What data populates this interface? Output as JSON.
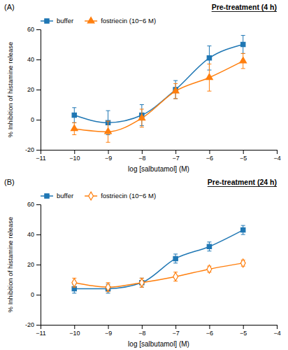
{
  "chart_data": [
    {
      "type": "line",
      "title": "Pre-treatment (4 h)",
      "annotations": [
        "(A)"
      ],
      "xlabel": "log [salbutamol] (M)",
      "ylabel": "% Inhibition of histamine release",
      "line_style": "solid",
      "legend": "top",
      "grid": false,
      "xlim": [
        -11,
        -4
      ],
      "ylim": [
        -20,
        60
      ],
      "xticks": [
        {
          "value": -11,
          "label": "−11"
        },
        {
          "value": -10,
          "label": "−10"
        },
        {
          "value": -9,
          "label": "−9"
        },
        {
          "value": -8,
          "label": "−8"
        },
        {
          "value": -7,
          "label": "−7"
        },
        {
          "value": -6,
          "label": "−6"
        },
        {
          "value": -5,
          "label": "−5"
        },
        {
          "value": -4,
          "label": "−4"
        }
      ],
      "yticks": [
        -20,
        0,
        20,
        40,
        60
      ],
      "series": [
        {
          "name": "buffer",
          "marker": "square",
          "x": [
            -10,
            -9,
            -8,
            -7,
            -6,
            -5
          ],
          "values": [
            3,
            -2,
            3,
            20,
            41,
            50
          ],
          "errors": [
            5,
            8,
            7,
            6,
            8,
            6
          ]
        },
        {
          "name": "fostriecin (10−6 M)",
          "marker": "triangle",
          "x": [
            -10,
            -9,
            -8,
            -7,
            -6,
            -5
          ],
          "values": [
            -6,
            -8,
            1,
            19,
            28,
            39
          ],
          "errors": [
            4,
            7,
            6,
            5,
            9,
            5
          ]
        }
      ]
    },
    {
      "type": "line",
      "title": "Pre-treatment (24 h)",
      "annotations": [
        "(B)"
      ],
      "xlabel": "log [salbutamol] (M)",
      "ylabel": "% Inhibition of histamine release",
      "line_style": "solid",
      "legend": "top",
      "grid": false,
      "xlim": [
        -11,
        -4
      ],
      "ylim": [
        -20,
        60
      ],
      "xticks": [
        {
          "value": -11,
          "label": "−11"
        },
        {
          "value": -10,
          "label": "−10"
        },
        {
          "value": -9,
          "label": "−9"
        },
        {
          "value": -8,
          "label": "−8"
        },
        {
          "value": -7,
          "label": "−7"
        },
        {
          "value": -6,
          "label": "−6"
        },
        {
          "value": -5,
          "label": "−5"
        },
        {
          "value": -4,
          "label": "−4"
        }
      ],
      "yticks": [
        -20,
        0,
        20,
        40,
        60
      ],
      "series": [
        {
          "name": "buffer",
          "marker": "square",
          "x": [
            -10,
            -9,
            -8,
            -7,
            -6,
            -5
          ],
          "values": [
            4,
            4,
            8,
            24,
            32,
            43
          ],
          "errors": [
            3,
            3,
            3,
            3,
            3,
            3
          ]
        },
        {
          "name": "fostriecin (10−6 M)",
          "marker": "diamond-open",
          "x": [
            -10,
            -9,
            -8,
            -7,
            -6,
            -5
          ],
          "values": [
            8,
            5,
            8,
            12,
            17,
            21
          ],
          "errors": [
            3,
            3,
            3,
            3,
            2,
            2
          ]
        }
      ]
    }
  ]
}
